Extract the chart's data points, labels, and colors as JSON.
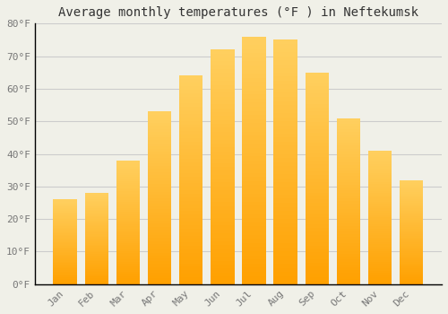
{
  "title": "Average monthly temperatures (°F ) in Neftekumsk",
  "months": [
    "Jan",
    "Feb",
    "Mar",
    "Apr",
    "May",
    "Jun",
    "Jul",
    "Aug",
    "Sep",
    "Oct",
    "Nov",
    "Dec"
  ],
  "values": [
    26,
    28,
    38,
    53,
    64,
    72,
    76,
    75,
    65,
    51,
    41,
    32
  ],
  "bar_color_top": "#FFD060",
  "bar_color_bottom": "#FFA000",
  "background_color": "#F0F0E8",
  "grid_color": "#CCCCCC",
  "ylim": [
    0,
    80
  ],
  "yticks": [
    0,
    10,
    20,
    30,
    40,
    50,
    60,
    70,
    80
  ],
  "ytick_labels": [
    "0°F",
    "10°F",
    "20°F",
    "30°F",
    "40°F",
    "50°F",
    "60°F",
    "70°F",
    "80°F"
  ],
  "title_fontsize": 10,
  "tick_fontsize": 8,
  "font_family": "monospace",
  "bar_width": 0.75
}
